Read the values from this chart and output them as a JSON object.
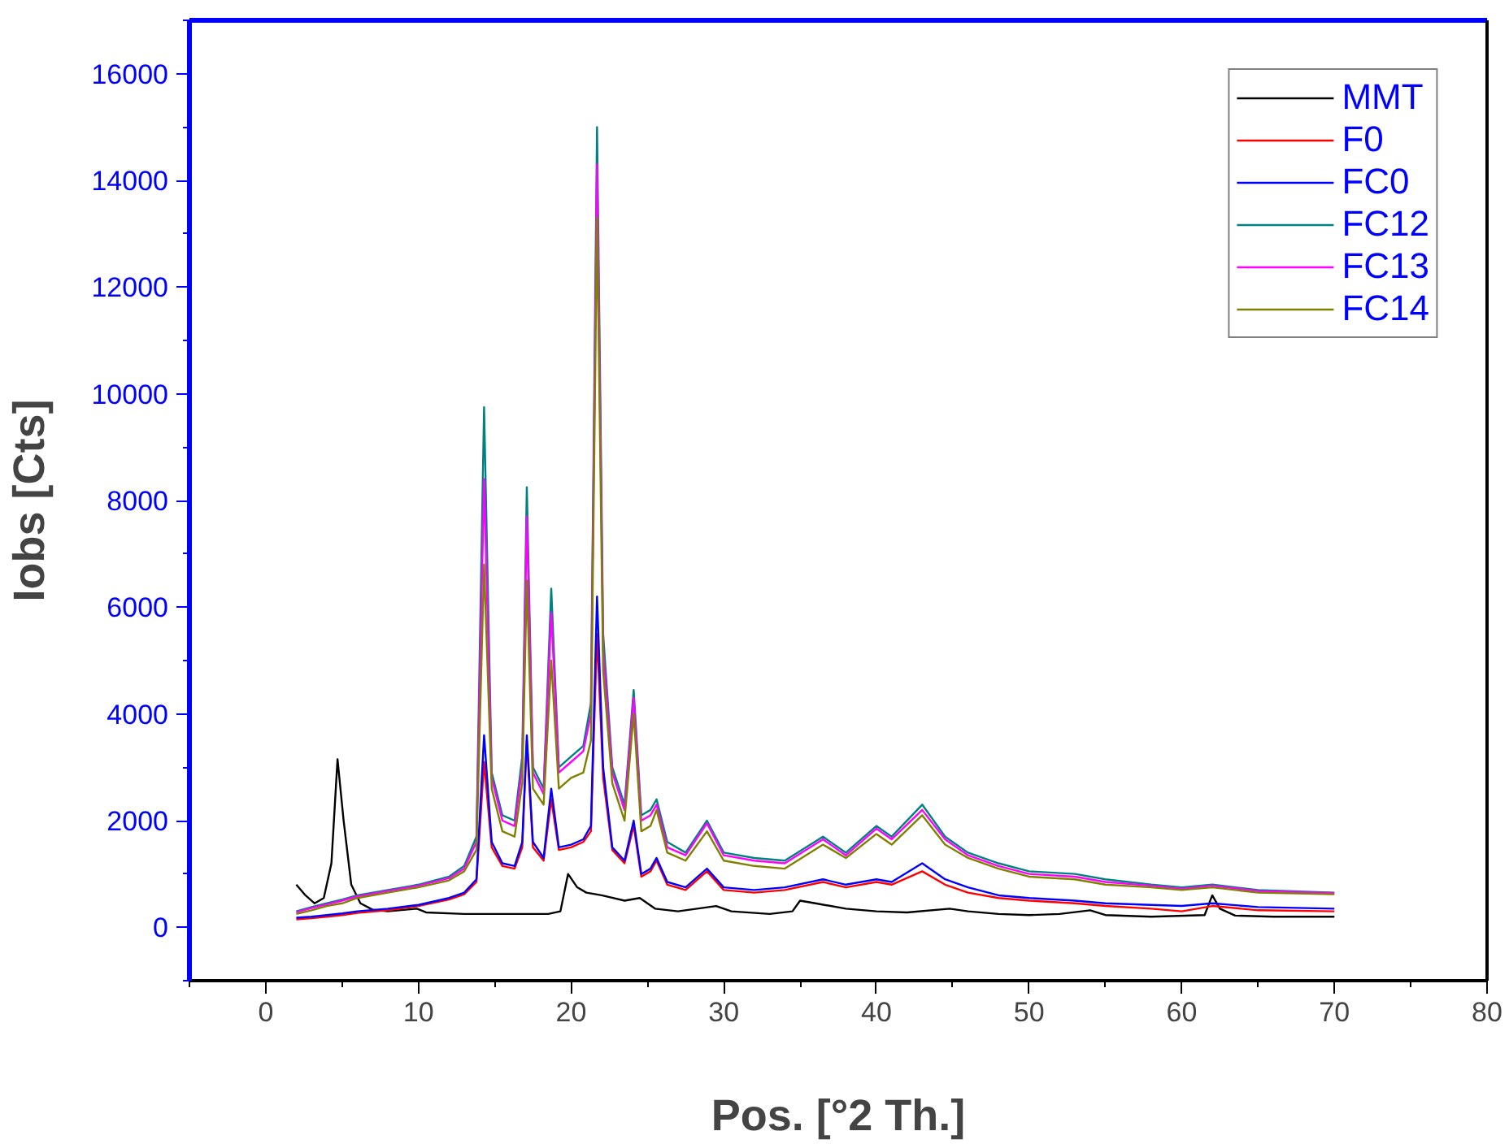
{
  "chart_data": {
    "type": "line",
    "xlabel": "Pos. [°2 Th.]",
    "ylabel": "Iobs [Cts]",
    "xlim": [
      -5,
      80
    ],
    "ylim": [
      -1000,
      17000
    ],
    "xticks": [
      0,
      10,
      20,
      30,
      40,
      50,
      60,
      70,
      80
    ],
    "yticks": [
      0,
      2000,
      4000,
      6000,
      8000,
      10000,
      12000,
      14000,
      16000
    ],
    "grid": false,
    "legend": "top right",
    "marker": "none",
    "line_style": "solid",
    "x": [
      2,
      3,
      4,
      5,
      6,
      8,
      10,
      12,
      13,
      13.8,
      14.3,
      14.8,
      15.5,
      16.3,
      16.8,
      17.1,
      17.5,
      18.2,
      18.7,
      19.2,
      20,
      20.8,
      21.3,
      21.7,
      22.1,
      22.7,
      23.5,
      24.1,
      24.6,
      25.2,
      25.6,
      26.3,
      27.5,
      28.9,
      30,
      32,
      34,
      36.5,
      38,
      40,
      41,
      43,
      44.5,
      46,
      48,
      50,
      53,
      55,
      58,
      60,
      62,
      65,
      70
    ],
    "series": [
      {
        "name": "MMT",
        "color": "#000000",
        "x": [
          2,
          2.6,
          3.2,
          3.8,
          4.3,
          4.7,
          5.1,
          5.6,
          6.2,
          7,
          8,
          9.9,
          10.5,
          13,
          16,
          18.5,
          19.3,
          19.8,
          20.4,
          21,
          22,
          23.5,
          24.5,
          25.5,
          27,
          29.5,
          30.5,
          33,
          34.5,
          35,
          36,
          38,
          40,
          42,
          44.8,
          46,
          48,
          50,
          52,
          54,
          55,
          58,
          61.5,
          62,
          62.5,
          63.5,
          66,
          70
        ],
        "values": [
          800,
          600,
          450,
          550,
          1200,
          3150,
          2000,
          800,
          450,
          330,
          300,
          350,
          280,
          250,
          250,
          250,
          300,
          1000,
          750,
          650,
          600,
          500,
          550,
          350,
          300,
          400,
          300,
          250,
          300,
          500,
          450,
          350,
          300,
          280,
          350,
          300,
          250,
          230,
          250,
          320,
          230,
          200,
          230,
          600,
          350,
          220,
          200,
          200
        ]
      },
      {
        "name": "F0",
        "color": "#ff0000",
        "values": [
          150,
          170,
          200,
          230,
          270,
          320,
          400,
          520,
          620,
          850,
          3100,
          1500,
          1150,
          1100,
          1500,
          3500,
          1500,
          1250,
          2400,
          1450,
          1500,
          1600,
          1800,
          5500,
          2800,
          1450,
          1200,
          1900,
          950,
          1050,
          1250,
          800,
          700,
          1050,
          700,
          650,
          700,
          850,
          750,
          850,
          800,
          1050,
          800,
          650,
          550,
          500,
          450,
          400,
          350,
          300,
          400,
          320,
          300
        ]
      },
      {
        "name": "FC0",
        "color": "#0000ff",
        "values": [
          180,
          200,
          230,
          260,
          300,
          350,
          420,
          550,
          650,
          900,
          3600,
          1600,
          1200,
          1150,
          1600,
          3600,
          1600,
          1300,
          2600,
          1500,
          1550,
          1650,
          1900,
          6200,
          3000,
          1500,
          1250,
          2000,
          1000,
          1100,
          1300,
          850,
          750,
          1100,
          750,
          700,
          750,
          900,
          800,
          900,
          850,
          1200,
          900,
          750,
          600,
          550,
          500,
          450,
          420,
          400,
          450,
          380,
          350
        ]
      },
      {
        "name": "FC12",
        "color": "#008080",
        "values": [
          300,
          380,
          450,
          520,
          600,
          700,
          800,
          950,
          1150,
          1700,
          9750,
          2900,
          2100,
          2000,
          3200,
          8250,
          3000,
          2600,
          6350,
          3000,
          3200,
          3400,
          4200,
          15000,
          5500,
          3000,
          2300,
          4450,
          2100,
          2200,
          2400,
          1600,
          1400,
          2000,
          1400,
          1300,
          1250,
          1700,
          1400,
          1900,
          1700,
          2300,
          1700,
          1400,
          1200,
          1050,
          1000,
          900,
          800,
          750,
          800,
          700,
          650
        ]
      },
      {
        "name": "FC13",
        "color": "#ff00ff",
        "values": [
          280,
          360,
          430,
          500,
          580,
          680,
          780,
          920,
          1100,
          1600,
          8400,
          2800,
          2000,
          1900,
          3000,
          7700,
          2900,
          2500,
          5900,
          2900,
          3100,
          3300,
          4000,
          14300,
          5200,
          2900,
          2200,
          4300,
          2000,
          2100,
          2300,
          1500,
          1350,
          1950,
          1350,
          1250,
          1200,
          1650,
          1350,
          1850,
          1650,
          2200,
          1650,
          1350,
          1150,
          1000,
          950,
          850,
          780,
          720,
          780,
          680,
          640
        ]
      },
      {
        "name": "FC14",
        "color": "#808000",
        "values": [
          250,
          320,
          400,
          450,
          550,
          650,
          750,
          880,
          1050,
          1450,
          6800,
          2600,
          1800,
          1700,
          2700,
          6500,
          2600,
          2300,
          5000,
          2600,
          2800,
          2900,
          3500,
          13300,
          4800,
          2700,
          2000,
          4000,
          1800,
          1900,
          2200,
          1400,
          1250,
          1800,
          1250,
          1150,
          1100,
          1550,
          1300,
          1750,
          1550,
          2100,
          1550,
          1300,
          1100,
          950,
          900,
          800,
          750,
          700,
          750,
          650,
          620
        ]
      }
    ]
  }
}
